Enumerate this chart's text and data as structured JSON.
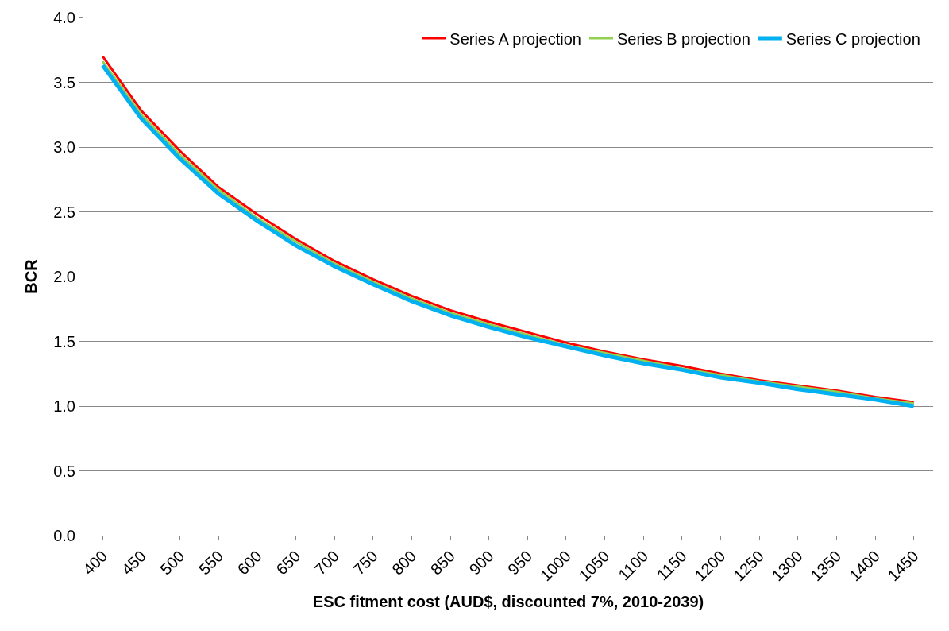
{
  "chart_data": {
    "type": "line",
    "xlabel": "ESC fitment cost (AUD$, discounted 7%, 2010-2039)",
    "ylabel": "BCR",
    "categories": [
      "400",
      "450",
      "500",
      "550",
      "600",
      "650",
      "700",
      "750",
      "800",
      "850",
      "900",
      "950",
      "1000",
      "1050",
      "1100",
      "1150",
      "1200",
      "1250",
      "1300",
      "1350",
      "1400",
      "1450"
    ],
    "series": [
      {
        "name": "Series A projection",
        "color": "#ff0000",
        "values": [
          3.7,
          3.28,
          2.97,
          2.69,
          2.48,
          2.29,
          2.12,
          1.98,
          1.85,
          1.74,
          1.65,
          1.57,
          1.49,
          1.42,
          1.36,
          1.31,
          1.25,
          1.2,
          1.16,
          1.12,
          1.07,
          1.03
        ]
      },
      {
        "name": "Series B projection",
        "color": "#92d050",
        "values": [
          3.66,
          3.25,
          2.94,
          2.67,
          2.45,
          2.27,
          2.1,
          1.96,
          1.83,
          1.72,
          1.63,
          1.55,
          1.47,
          1.41,
          1.35,
          1.29,
          1.24,
          1.19,
          1.15,
          1.11,
          1.06,
          1.02
        ]
      },
      {
        "name": "Series C projection",
        "color": "#00b0f0",
        "values": [
          3.63,
          3.22,
          2.91,
          2.64,
          2.43,
          2.24,
          2.08,
          1.94,
          1.81,
          1.7,
          1.61,
          1.53,
          1.46,
          1.39,
          1.33,
          1.28,
          1.22,
          1.18,
          1.13,
          1.09,
          1.05,
          1.0
        ]
      }
    ],
    "ylim": [
      0,
      4
    ],
    "yticks": [
      {
        "value": 0,
        "label": "0.0"
      },
      {
        "value": 0.5,
        "label": "0.5"
      },
      {
        "value": 1,
        "label": "1.0"
      },
      {
        "value": 1.5,
        "label": "1.5"
      },
      {
        "value": 2,
        "label": "2.0"
      },
      {
        "value": 2.5,
        "label": "2.5"
      },
      {
        "value": 3,
        "label": "3.0"
      },
      {
        "value": 3.5,
        "label": "3.5"
      },
      {
        "value": 4,
        "label": "4.0"
      }
    ],
    "grid": "y",
    "legend": "top right",
    "marker": "none",
    "line_style": "solid"
  }
}
